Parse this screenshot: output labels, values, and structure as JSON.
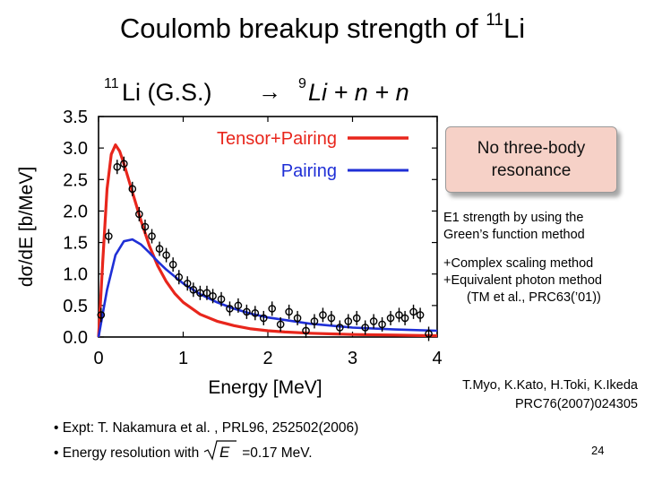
{
  "slide": {
    "title_main": "Coulomb breakup strength of ",
    "title_super": "11",
    "title_tail": "Li",
    "page_number": "24"
  },
  "reaction": {
    "initial_mass": "11",
    "initial_label": "Li (G.S.)",
    "arrow": "→",
    "final_mass": "9",
    "final_label": "Li + n + n"
  },
  "callout": {
    "line1": "No three-body",
    "line2": "resonance"
  },
  "method": {
    "line1": "E1 strength by using the",
    "line2": "Green’s function method",
    "item1": "+Complex scaling method",
    "item2": "+Equivalent photon method",
    "item3": "(TM et al., PRC63(’01))"
  },
  "authors": {
    "line1": "T.Myo, K.Kato, H.Toki, K.Ikeda",
    "line2": "PRC76(2007)024305"
  },
  "bullets": {
    "b1": "• Expt: T. Nakamura et al. , PRL96, 252502(2006)",
    "b2_prefix": "• Energy resolution with",
    "b2_suffix": "=0.17 MeV.",
    "sqrt_E": "E"
  },
  "chart_data": {
    "type": "scatter",
    "xlabel": "Energy [MeV]",
    "ylabel": "dσ/dE [b/MeV]",
    "xlim": [
      0,
      4
    ],
    "ylim": [
      0,
      3.5
    ],
    "x_ticks": [
      "0",
      "1",
      "2",
      "3",
      "4"
    ],
    "y_ticks": [
      "0.0",
      "0.5",
      "1.0",
      "1.5",
      "2.0",
      "2.5",
      "3.0",
      "3.5"
    ],
    "legend_placement": "top-right",
    "grid": false,
    "series": [
      {
        "name": "Tensor+Pairing",
        "kind": "line",
        "color": "#e8261c",
        "x": [
          0,
          0.05,
          0.1,
          0.15,
          0.2,
          0.25,
          0.3,
          0.4,
          0.5,
          0.6,
          0.7,
          0.8,
          0.9,
          1.0,
          1.2,
          1.4,
          1.6,
          1.8,
          2.0,
          2.2,
          2.5,
          3.0,
          3.5,
          4.0
        ],
        "values": [
          0,
          1.2,
          2.35,
          2.9,
          3.05,
          2.95,
          2.75,
          2.3,
          1.85,
          1.45,
          1.13,
          0.88,
          0.69,
          0.55,
          0.36,
          0.25,
          0.18,
          0.13,
          0.1,
          0.08,
          0.06,
          0.04,
          0.03,
          0.02
        ]
      },
      {
        "name": "Pairing",
        "kind": "line",
        "color": "#1f2fd6",
        "x": [
          0,
          0.1,
          0.2,
          0.3,
          0.4,
          0.5,
          0.6,
          0.7,
          0.8,
          1.0,
          1.2,
          1.4,
          1.6,
          1.8,
          2.0,
          2.5,
          3.0,
          3.5,
          4.0
        ],
        "values": [
          0,
          0.75,
          1.3,
          1.52,
          1.55,
          1.47,
          1.34,
          1.2,
          1.07,
          0.85,
          0.68,
          0.55,
          0.45,
          0.37,
          0.31,
          0.21,
          0.15,
          0.12,
          0.1
        ]
      },
      {
        "name": "Expt",
        "kind": "points",
        "color": "#000000",
        "x": [
          0.03,
          0.12,
          0.22,
          0.3,
          0.4,
          0.48,
          0.55,
          0.63,
          0.72,
          0.8,
          0.88,
          0.95,
          1.05,
          1.12,
          1.2,
          1.28,
          1.35,
          1.45,
          1.55,
          1.65,
          1.75,
          1.85,
          1.95,
          2.05,
          2.15,
          2.25,
          2.35,
          2.45,
          2.55,
          2.65,
          2.75,
          2.85,
          2.95,
          3.05,
          3.15,
          3.25,
          3.35,
          3.45,
          3.55,
          3.62,
          3.72,
          3.8,
          3.9
        ],
        "values": [
          0.35,
          1.6,
          2.7,
          2.75,
          2.35,
          1.95,
          1.75,
          1.6,
          1.4,
          1.3,
          1.15,
          0.95,
          0.85,
          0.75,
          0.7,
          0.7,
          0.65,
          0.6,
          0.45,
          0.5,
          0.4,
          0.38,
          0.3,
          0.45,
          0.2,
          0.4,
          0.3,
          0.1,
          0.25,
          0.35,
          0.3,
          0.15,
          0.25,
          0.3,
          0.15,
          0.25,
          0.2,
          0.3,
          0.35,
          0.3,
          0.4,
          0.35,
          0.05
        ]
      }
    ]
  }
}
